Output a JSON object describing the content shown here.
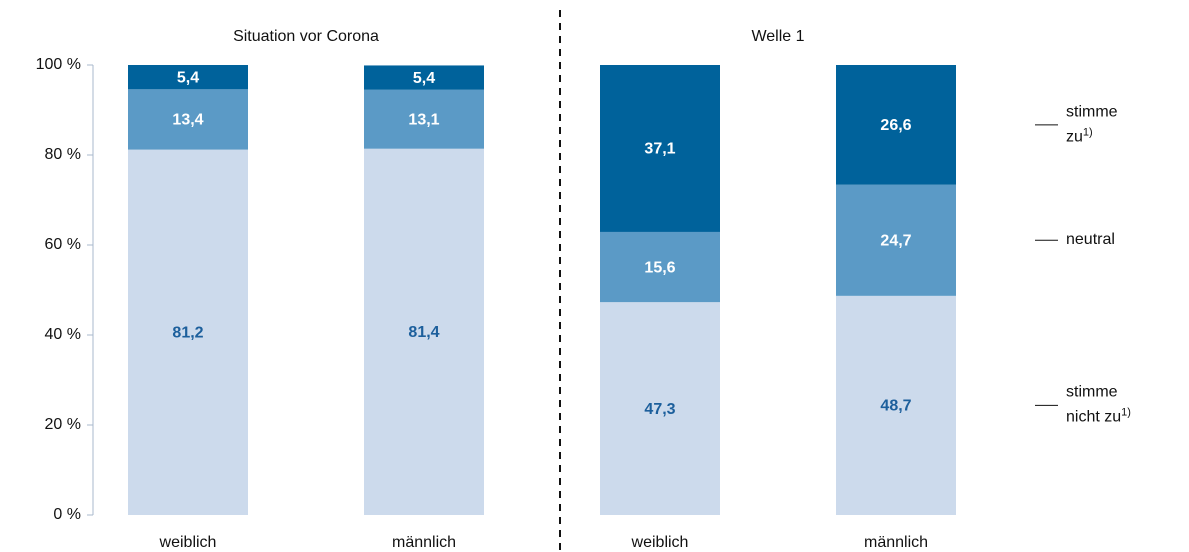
{
  "chart_data": {
    "type": "stacked_bar",
    "groups": [
      {
        "label": "Situation vor Corona",
        "categories": [
          0,
          1
        ]
      },
      {
        "label": "Welle 1",
        "categories": [
          2,
          3
        ]
      }
    ],
    "categories": [
      "weiblich",
      "männlich",
      "weiblich",
      "männlich"
    ],
    "series": [
      {
        "name": "stimme nicht zu",
        "note": "1)",
        "color": "#ccdaec",
        "label_color": "#1c5f9c",
        "values": [
          81.2,
          81.4,
          47.3,
          48.7
        ],
        "value_labels": [
          "81,2",
          "81,4",
          "47,3",
          "48,7"
        ]
      },
      {
        "name": "neutral",
        "color": "#5b9ac6",
        "label_color": "#ffffff",
        "values": [
          13.4,
          13.1,
          15.6,
          24.7
        ],
        "value_labels": [
          "13,4",
          "13,1",
          "15,6",
          "24,7"
        ]
      },
      {
        "name": "stimme zu",
        "note": "1)",
        "color": "#00629b",
        "label_color": "#ffffff",
        "values": [
          5.4,
          5.4,
          37.1,
          26.6
        ],
        "value_labels": [
          "5,4",
          "5,4",
          "37,1",
          "26,6"
        ]
      }
    ],
    "ylim": [
      0,
      100
    ],
    "yticks": [
      {
        "value": 0,
        "label": "0 %"
      },
      {
        "value": 20,
        "label": "20 %"
      },
      {
        "value": 40,
        "label": "40 %"
      },
      {
        "value": 60,
        "label": "60 %"
      },
      {
        "value": 80,
        "label": "80 %"
      },
      {
        "value": 100,
        "label": "100 %"
      }
    ]
  }
}
